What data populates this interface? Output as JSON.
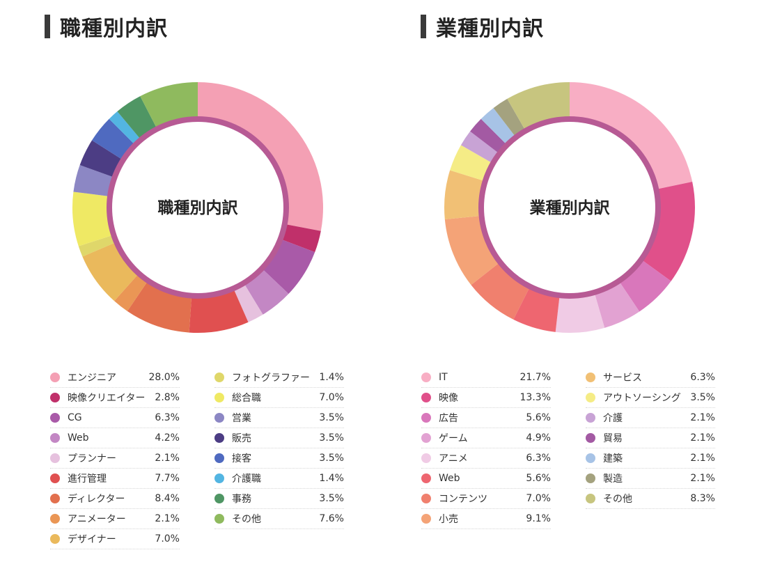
{
  "charts": [
    {
      "title": "職種別内訳",
      "center_label": "職種別内訳",
      "chart_data": {
        "type": "pie",
        "categories": [
          "エンジニア",
          "映像クリエイター",
          "CG",
          "Web",
          "プランナー",
          "進行管理",
          "ディレクター",
          "アニメーター",
          "デザイナー",
          "フォトグラファー",
          "総合職",
          "営業",
          "販売",
          "接客",
          "介護職",
          "事務",
          "その他"
        ],
        "values": [
          28.0,
          2.8,
          6.3,
          4.2,
          2.1,
          7.7,
          8.4,
          2.1,
          7.0,
          1.4,
          7.0,
          3.5,
          3.5,
          3.5,
          1.4,
          3.5,
          7.6
        ],
        "labels": [
          "28.0%",
          "2.8%",
          "6.3%",
          "4.2%",
          "2.1%",
          "7.7%",
          "8.4%",
          "2.1%",
          "7.0%",
          "1.4%",
          "7.0%",
          "3.5%",
          "3.5%",
          "3.5%",
          "1.4%",
          "3.5%",
          "7.6%"
        ],
        "colors": [
          "#f4a0b4",
          "#c0306a",
          "#a95aa8",
          "#c387c4",
          "#e6c1de",
          "#e05050",
          "#e2704e",
          "#ea9655",
          "#eab95c",
          "#dfd76a",
          "#efe964",
          "#8c87c4",
          "#4c3d84",
          "#4f6ac0",
          "#53b5e2",
          "#4f9664",
          "#8fba5e"
        ],
        "ring_color": "#b75a94"
      }
    },
    {
      "title": "業種別内訳",
      "center_label": "業種別内訳",
      "chart_data": {
        "type": "pie",
        "categories": [
          "IT",
          "映像",
          "広告",
          "ゲーム",
          "アニメ",
          "Web",
          "コンテンツ",
          "小売",
          "サービス",
          "アウトソーシング",
          "介護",
          "貿易",
          "建築",
          "製造",
          "その他"
        ],
        "values": [
          21.7,
          13.3,
          5.6,
          4.9,
          6.3,
          5.6,
          7.0,
          9.1,
          6.3,
          3.5,
          2.1,
          2.1,
          2.1,
          2.1,
          8.3
        ],
        "labels": [
          "21.7%",
          "13.3%",
          "5.6%",
          "4.9%",
          "6.3%",
          "5.6%",
          "7.0%",
          "9.1%",
          "6.3%",
          "3.5%",
          "2.1%",
          "2.1%",
          "2.1%",
          "2.1%",
          "8.3%"
        ],
        "colors": [
          "#f8aec4",
          "#e0508a",
          "#d977bb",
          "#e2a2d2",
          "#f0cbe5",
          "#ee6670",
          "#f0806e",
          "#f4a377",
          "#f1c075",
          "#f5ec86",
          "#c8a3d5",
          "#a35aa3",
          "#a7c3e6",
          "#a4a27f",
          "#c7c57f"
        ],
        "ring_color": "#b75a94"
      }
    }
  ]
}
